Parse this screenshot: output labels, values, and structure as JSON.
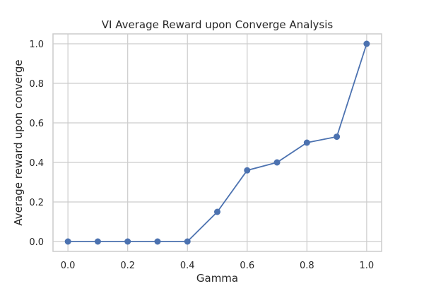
{
  "chart_data": {
    "type": "line",
    "title": "VI Average Reward upon Converge Analysis",
    "xlabel": "Gamma",
    "ylabel": "Average reward upon converge",
    "xlim": [
      -0.05,
      1.05
    ],
    "ylim": [
      -0.05,
      1.05
    ],
    "xticks": [
      "0.0",
      "0.2",
      "0.4",
      "0.6",
      "0.8",
      "1.0"
    ],
    "yticks": [
      "0.0",
      "0.2",
      "0.4",
      "0.6",
      "0.8",
      "1.0"
    ],
    "grid": true,
    "x": [
      0.0,
      0.1,
      0.2,
      0.3,
      0.4,
      0.5,
      0.6,
      0.7,
      0.8,
      0.9,
      1.0
    ],
    "series": [
      {
        "color": "#4c72b0",
        "marker": "circle",
        "values": [
          0.0,
          0.0,
          0.0,
          0.0,
          0.0,
          0.15,
          0.36,
          0.4,
          0.5,
          0.53,
          1.0
        ]
      }
    ]
  }
}
